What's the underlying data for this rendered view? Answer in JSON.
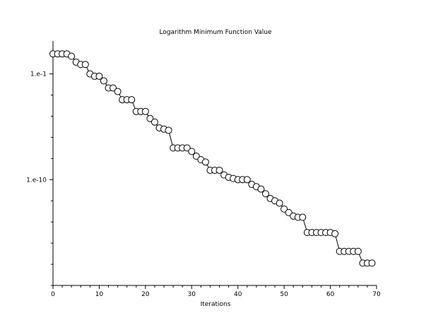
{
  "chart_data": {
    "type": "line",
    "title": "Logarithm Minimum Function Value",
    "xlabel": "Iterations",
    "ylabel": "",
    "xlim": [
      0,
      70
    ],
    "x_ticks": [
      0,
      10,
      20,
      30,
      40,
      50,
      60,
      70
    ],
    "y_scale": "log10",
    "ylim_log10": [
      -19,
      1.8
    ],
    "y_ticks": [
      {
        "log10": -1,
        "label": "1.e-1"
      },
      {
        "log10": -10,
        "label": "1.e-10"
      }
    ],
    "grid": false,
    "marker": "circle-open",
    "series": [
      {
        "x": [
          0,
          1,
          2,
          3,
          4,
          5,
          6,
          7,
          8,
          9,
          10,
          11,
          12,
          13,
          14,
          15,
          16,
          17,
          18,
          19,
          20,
          21,
          22,
          23,
          24,
          25,
          26,
          27,
          28,
          29,
          30,
          31,
          32,
          33,
          34,
          35,
          36,
          37,
          38,
          39,
          40,
          41,
          42,
          43,
          44,
          45,
          46,
          47,
          48,
          49,
          50,
          51,
          52,
          53,
          54,
          55,
          56,
          57,
          58,
          59,
          60,
          61,
          62,
          63,
          64,
          65,
          66,
          67,
          68,
          69
        ],
        "y_log10": [
          0.7,
          0.7,
          0.7,
          0.7,
          0.5,
          0.0,
          -0.2,
          -0.2,
          -1.0,
          -1.2,
          -1.2,
          -1.6,
          -2.2,
          -2.2,
          -2.5,
          -3.2,
          -3.2,
          -3.2,
          -4.2,
          -4.2,
          -4.2,
          -4.8,
          -5.1,
          -5.6,
          -5.7,
          -5.8,
          -7.3,
          -7.3,
          -7.3,
          -7.3,
          -7.6,
          -8.0,
          -8.3,
          -8.5,
          -9.2,
          -9.2,
          -9.2,
          -9.6,
          -9.8,
          -9.9,
          -10.0,
          -10.0,
          -10.0,
          -10.4,
          -10.6,
          -10.8,
          -11.2,
          -11.6,
          -11.8,
          -12.0,
          -12.5,
          -12.8,
          -13.1,
          -13.2,
          -13.2,
          -14.5,
          -14.5,
          -14.5,
          -14.5,
          -14.5,
          -14.5,
          -14.6,
          -16.1,
          -16.1,
          -16.1,
          -16.1,
          -16.1,
          -17.1,
          -17.1,
          -17.1
        ]
      }
    ]
  }
}
